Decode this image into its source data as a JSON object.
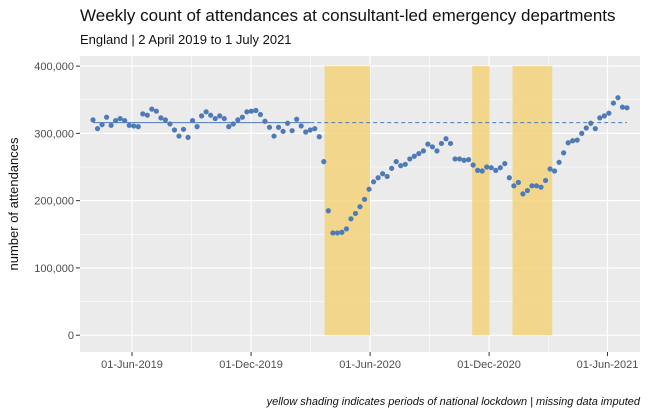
{
  "chart_data": {
    "type": "scatter",
    "title": "Weekly count of attendances at consultant-led emergency departments",
    "subtitle": "England | 2 April 2019 to 1 July 2021",
    "caption": "yellow shading indicates periods of national lockdown | missing data imputed",
    "xlabel": "",
    "ylabel": "number of attendances",
    "x_start": "2019-04-02",
    "x_end": "2021-07-01",
    "ylim": [
      -25000,
      415000
    ],
    "yticks": [
      0,
      100000,
      200000,
      300000,
      400000
    ],
    "ytick_labels": [
      "0",
      "100,000",
      "200,000",
      "300,000",
      "400,000"
    ],
    "xtick_labels": [
      "01-Jun-2019",
      "01-Dec-2019",
      "01-Jun-2020",
      "01-Dec-2020",
      "01-Jun-2021"
    ],
    "xtick_dates": [
      "2019-06-01",
      "2019-12-01",
      "2020-06-01",
      "2020-12-01",
      "2021-06-01"
    ],
    "baseline_value": 316000,
    "baseline_solid_end": "2020-03-01",
    "lockdowns": [
      {
        "start": "2020-03-23",
        "end": "2020-06-01"
      },
      {
        "start": "2020-11-05",
        "end": "2020-12-02"
      },
      {
        "start": "2021-01-06",
        "end": "2021-03-08"
      }
    ],
    "colors": {
      "point": "#4f7ab8",
      "baseline": "#4f7ab8",
      "lockdown": "#f3d27a",
      "panel": "#ebebeb",
      "grid": "#ffffff"
    },
    "values": [
      320000,
      307000,
      313000,
      324000,
      312000,
      319000,
      322000,
      319000,
      312000,
      311000,
      310000,
      329000,
      327000,
      336000,
      333000,
      323000,
      320000,
      314000,
      305000,
      296000,
      306000,
      294000,
      319000,
      310000,
      326000,
      332000,
      327000,
      322000,
      326000,
      322000,
      310000,
      314000,
      320000,
      324000,
      332000,
      333000,
      334000,
      328000,
      318000,
      309000,
      296000,
      309000,
      303000,
      315000,
      304000,
      321000,
      311000,
      302000,
      305000,
      307000,
      295000,
      258000,
      185000,
      152000,
      152000,
      153000,
      158000,
      173000,
      181000,
      191000,
      202000,
      217000,
      228000,
      234000,
      240000,
      236000,
      248000,
      258000,
      252000,
      254000,
      262000,
      266000,
      270000,
      274000,
      284000,
      280000,
      274000,
      285000,
      292000,
      285000,
      262000,
      262000,
      260000,
      261000,
      253000,
      245000,
      244000,
      250000,
      249000,
      245000,
      249000,
      255000,
      234000,
      222000,
      227000,
      210000,
      215000,
      222000,
      222000,
      220000,
      230000,
      247000,
      244000,
      257000,
      271000,
      286000,
      289000,
      290000,
      300000,
      308000,
      315000,
      307000,
      323000,
      326000,
      330000,
      345000,
      353000,
      339000,
      338000
    ]
  }
}
